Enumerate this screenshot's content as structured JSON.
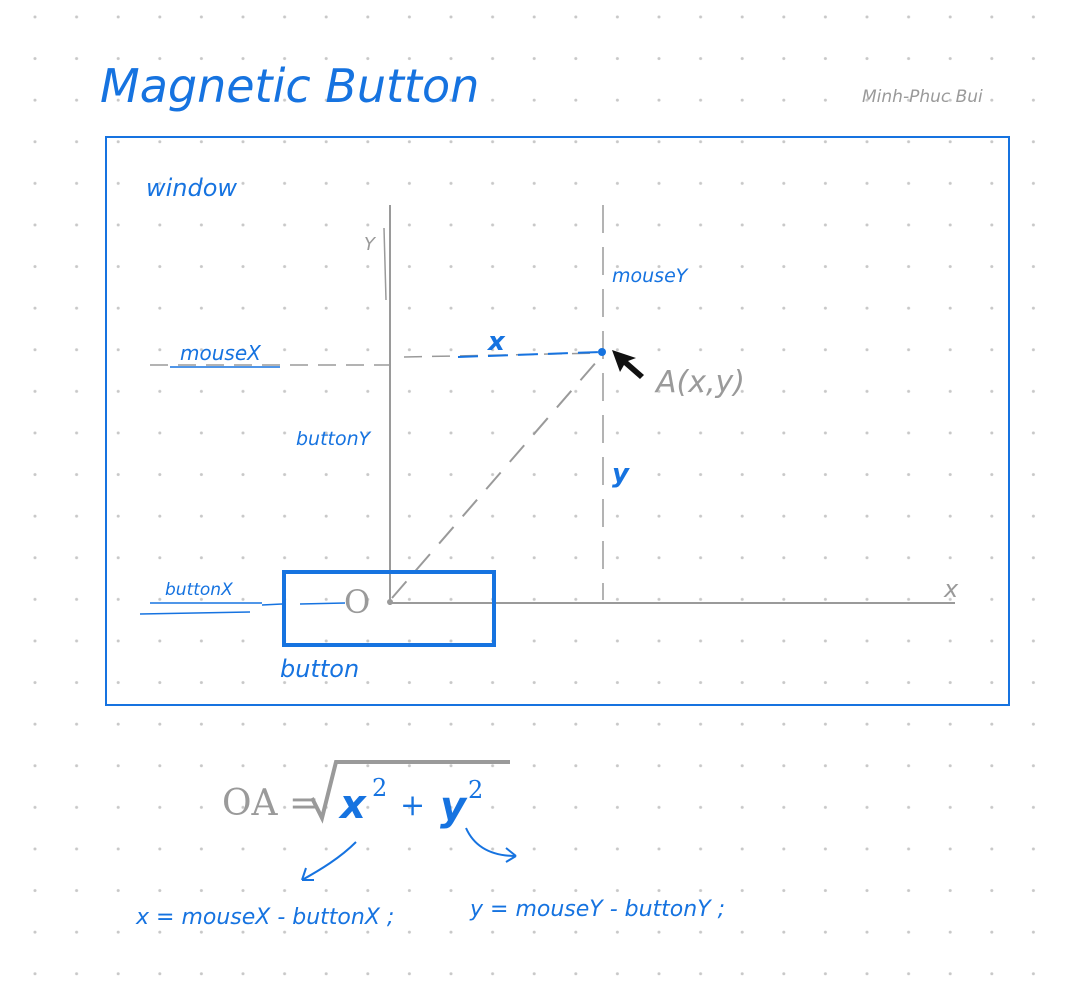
{
  "header": {
    "title": "Magnetic Button",
    "author": "Minh-Phuc Bui"
  },
  "diagram": {
    "window_label": "window",
    "y_axis_label": "Y",
    "x_axis_label": "x",
    "mouseX_label": "mouseX",
    "mouseY_label": "mouseY",
    "x_segment_label": "x",
    "y_segment_label": "y",
    "buttonY_label": "buttonY",
    "buttonX_label": "buttonX",
    "button_label": "button",
    "origin_label": "O",
    "point_label": "A(x,y)"
  },
  "formula": {
    "lhs": "OA =",
    "x_term": "x",
    "plus": "+",
    "y_term": "y",
    "exponent": "2",
    "x_def": "x = mouseX - buttonX ;",
    "y_def": "y = mouseY - buttonY ;"
  },
  "colors": {
    "ink_blue": "#1673e0",
    "ink_gray": "#9a9a9a",
    "dot_grid": "#c8c8c8",
    "cursor": "#111111"
  }
}
